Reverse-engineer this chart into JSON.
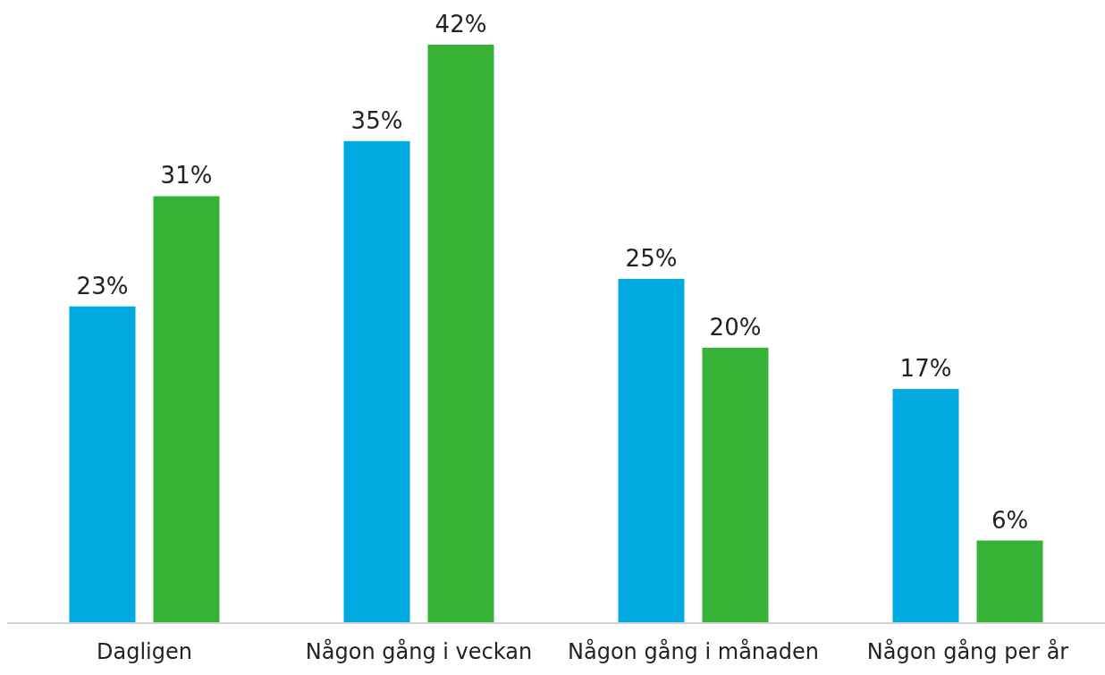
{
  "chart_data": {
    "type": "bar",
    "categories": [
      "Dagligen",
      "Någon gång i veckan",
      "Någon gång i månaden",
      "Någon gång per år"
    ],
    "series": [
      {
        "color": "#00a9e0",
        "values": [
          23,
          35,
          25,
          17
        ],
        "value_labels": [
          "23%",
          "35%",
          "25%",
          "17%"
        ]
      },
      {
        "color": "#36b336",
        "values": [
          31,
          42,
          20,
          6
        ],
        "value_labels": [
          "31%",
          "42%",
          "20%",
          "6%"
        ]
      }
    ]
  }
}
